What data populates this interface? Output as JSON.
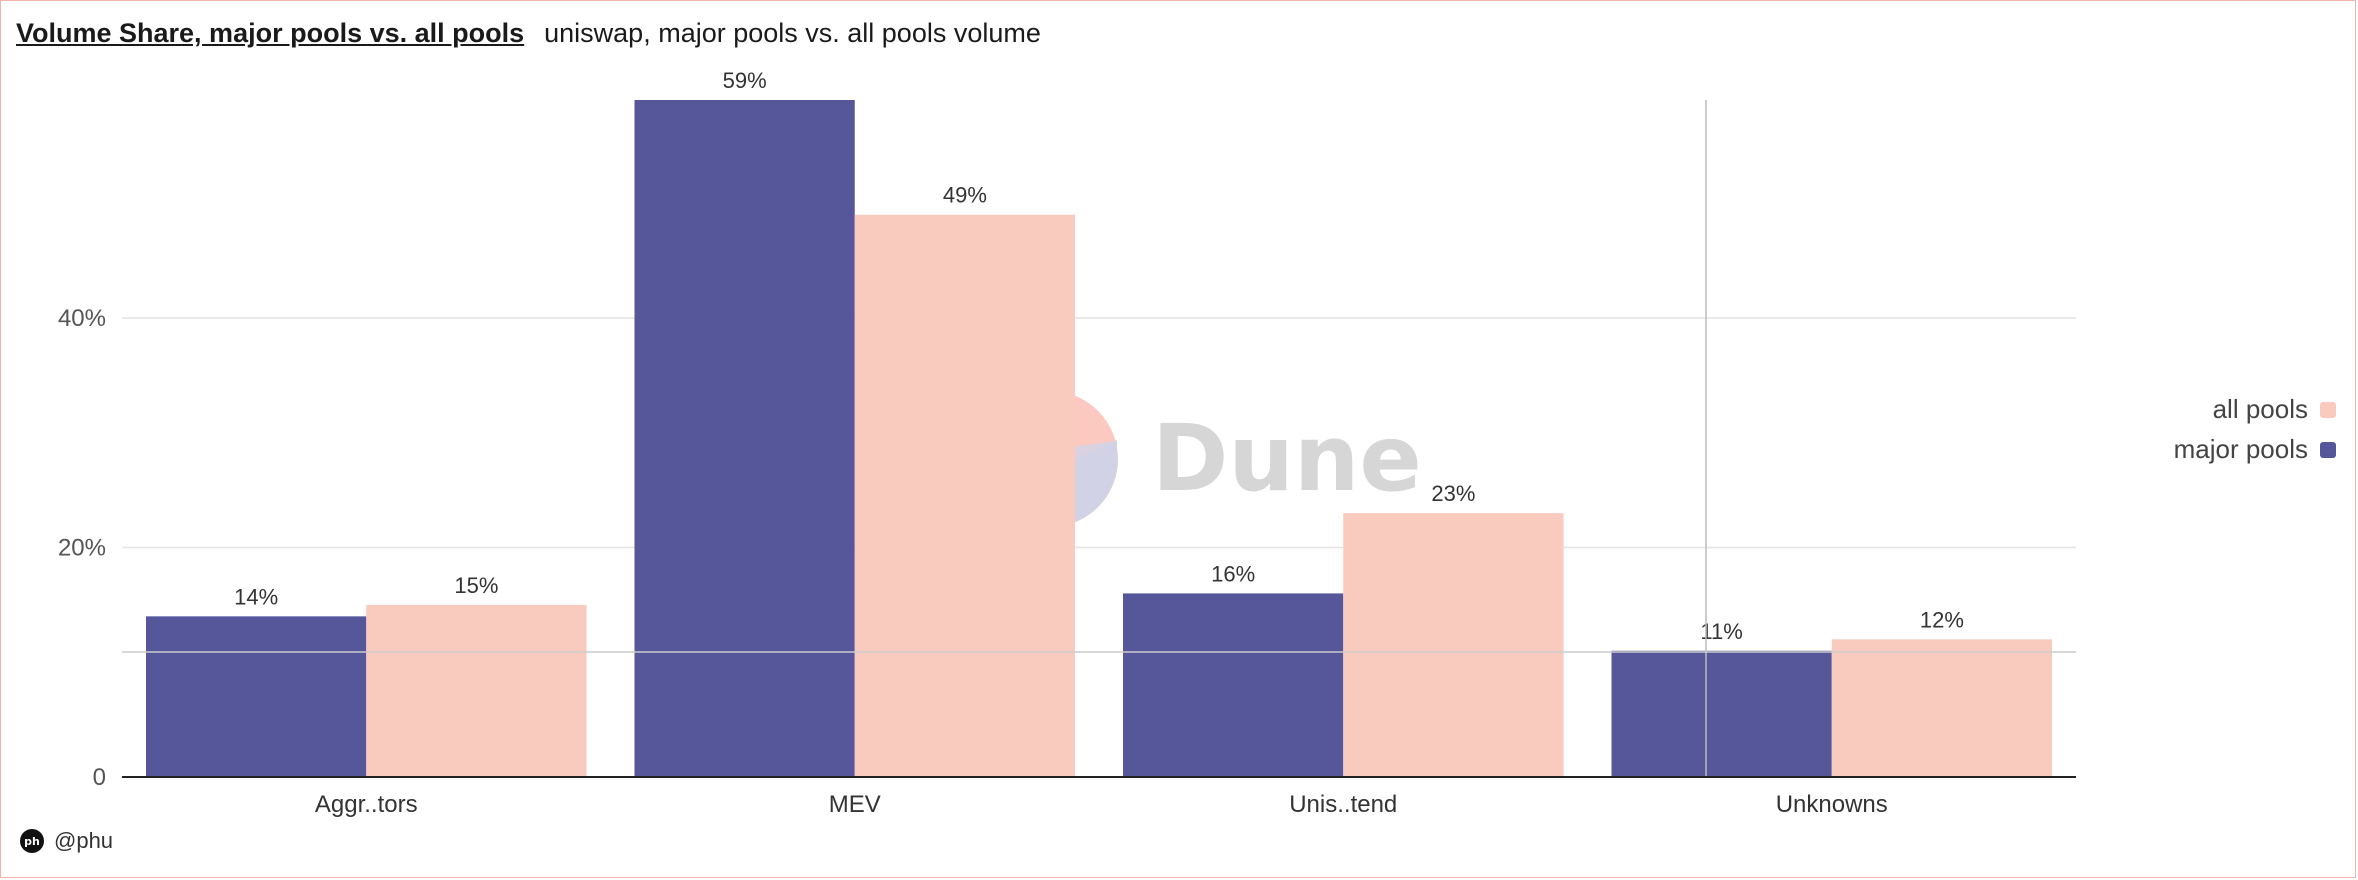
{
  "header": {
    "title": "Volume Share, major pools vs. all pools",
    "subtitle": "uniswap, major pools vs. all pools volume"
  },
  "watermark": {
    "text": "Dune",
    "icon": "dune-logo-icon"
  },
  "attribution": {
    "user": "@phu",
    "avatar_initials": "ph"
  },
  "colors": {
    "major_pools": "#55579a",
    "all_pools": "#f9cabe",
    "grid": "#e4e4e4",
    "axis": "#222222",
    "text": "#333333"
  },
  "chart_data": {
    "type": "bar",
    "categories": [
      "Aggr..tors",
      "MEV",
      "Unis..tend",
      "Unknowns"
    ],
    "series": [
      {
        "name": "major pools",
        "values": [
          14,
          59,
          16,
          11
        ],
        "labels": [
          "14%",
          "59%",
          "16%",
          "11%"
        ]
      },
      {
        "name": "all pools",
        "values": [
          15,
          49,
          23,
          12
        ],
        "labels": [
          "15%",
          "49%",
          "23%",
          "12%"
        ]
      }
    ],
    "yticks": [
      {
        "value": 0,
        "label": "0"
      },
      {
        "value": 20,
        "label": "20%"
      },
      {
        "value": 40,
        "label": "40%"
      }
    ],
    "ylim": [
      0,
      59
    ],
    "grid": true,
    "legend": {
      "placement": "right",
      "order": [
        "all pools",
        "major pools"
      ]
    }
  }
}
